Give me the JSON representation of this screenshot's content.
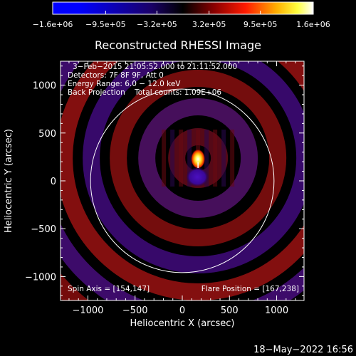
{
  "chart_data": {
    "type": "heatmap",
    "title": "Reconstructed RHESSI Image",
    "xlabel": "Heliocentric X (arcsec)",
    "ylabel": "Heliocentric Y (arcsec)",
    "xlim": [
      -1290,
      1290
    ],
    "ylim": [
      -1250,
      1250
    ],
    "x_ticks": [
      -1000,
      -500,
      0,
      500,
      1000
    ],
    "y_ticks": [
      -1000,
      -500,
      0,
      500,
      1000
    ],
    "x_tick_labels": [
      "−1000",
      "−500",
      "0",
      "500",
      "1000"
    ],
    "y_tick_labels": [
      "−1000",
      "−500",
      "0",
      "500",
      "1000"
    ],
    "colorbar": {
      "range": [
        -1600000,
        1600000
      ],
      "ticks": [
        -1600000,
        -950000,
        -320000,
        320000,
        950000,
        1600000
      ],
      "tick_labels": [
        "−1.6e+06",
        "−9.5e+05",
        "−3.2e+05",
        "3.2e+05",
        "9.5e+05",
        "1.6e+06"
      ],
      "colors": [
        "#0000ff",
        "#000000",
        "#ff0000",
        "#ffff00",
        "#ffffff"
      ]
    },
    "annotations": [
      "3−Feb−2015 21:05:52.000 to 21:11:52.000",
      "Detectors: 7F 8F 9F, Att 0",
      "Energy Range: 6.0 − 12.0 keV",
      "Back Projection    Total counts: 1.09E+06"
    ],
    "solar_disk_radius_arcsec": 972,
    "flare_source_arcsec": [
      167,
      238
    ],
    "negative_lobe_arcsec": [
      160,
      40
    ],
    "spin_axis": "Spin Axis = [154,147]",
    "flare_position": "Flare Position = [167,238]",
    "grid": false
  },
  "footer": {
    "date": "18−May−2022 16:56"
  },
  "colors": {
    "background": "#000000",
    "axes": "#ffffff",
    "disk_outline": "#ffffff"
  }
}
